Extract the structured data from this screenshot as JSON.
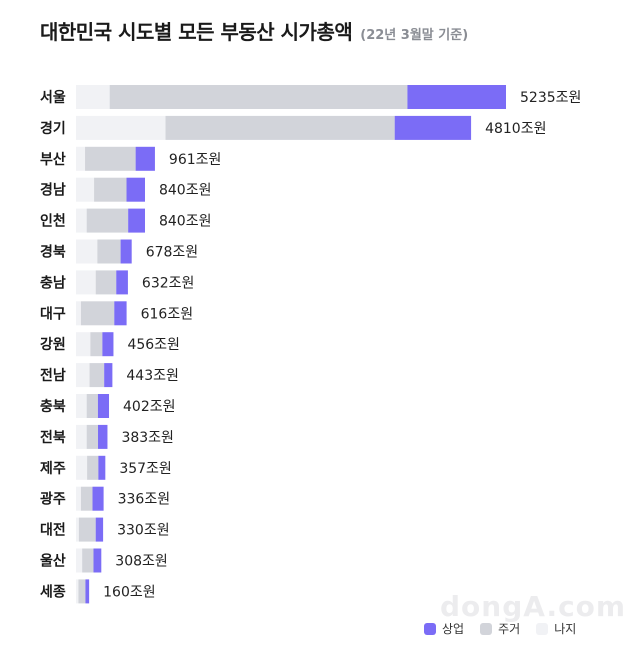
{
  "colors": {
    "commercial": "#7b6cf6",
    "residential": "#d2d4da",
    "land": "#f1f2f5"
  },
  "watermark": "dongA.com",
  "chart_data": {
    "type": "bar",
    "orientation": "horizontal",
    "stacked": true,
    "title": "대한민국 시도별 모든 부동산 시가총액",
    "subtitle": "(22년 3월말 기준)",
    "unit": "조원",
    "categories": [
      "서울",
      "경기",
      "부산",
      "경남",
      "인천",
      "경북",
      "충남",
      "대구",
      "강원",
      "전남",
      "충북",
      "전북",
      "제주",
      "광주",
      "대전",
      "울산",
      "세종"
    ],
    "totals": [
      5235,
      4810,
      961,
      840,
      840,
      678,
      632,
      616,
      456,
      443,
      402,
      383,
      357,
      336,
      330,
      308,
      160
    ],
    "series": [
      {
        "name": "나지",
        "values": [
          410,
          1090,
          110,
          220,
          130,
          260,
          240,
          60,
          175,
          165,
          130,
          130,
          135,
          60,
          35,
          75,
          30
        ]
      },
      {
        "name": "주거",
        "values": [
          3625,
          2790,
          616,
          395,
          505,
          283,
          250,
          406,
          146,
          178,
          137,
          138,
          137,
          141,
          205,
          138,
          85
        ]
      },
      {
        "name": "상업",
        "values": [
          1200,
          930,
          235,
          225,
          205,
          135,
          142,
          150,
          135,
          100,
          135,
          115,
          85,
          135,
          90,
          95,
          45
        ]
      }
    ],
    "legend": [
      "상업",
      "주거",
      "나지"
    ],
    "legend_position": "bottom-right",
    "grid": false
  }
}
